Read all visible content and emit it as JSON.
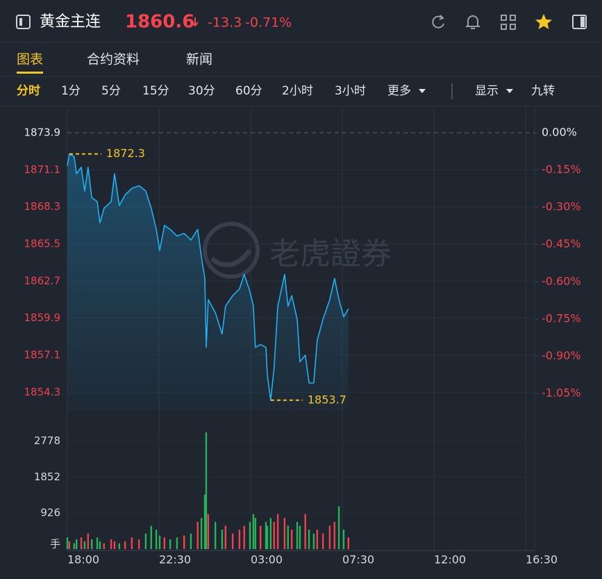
{
  "header": {
    "title": "黄金主连",
    "price": 1860.6,
    "change": -13.3,
    "change_pct": "-0.71%"
  },
  "tabs": [
    "图表",
    "合约资料",
    "新闻"
  ],
  "active_tab": 0,
  "periods": [
    "分时",
    "1分",
    "5分",
    "15分",
    "30分",
    "60分",
    "2小时",
    "3小时"
  ],
  "active_period": 0,
  "more": "更多",
  "display": "显示",
  "nine_turn": "九转",
  "watermark": "老虎證券",
  "chart_data": [
    {
      "type": "line",
      "x": [
        "18:00",
        "18:06",
        "18:20",
        "18:27",
        "18:41",
        "18:51",
        "19:01",
        "19:12",
        "19:28",
        "19:36",
        "19:48",
        "20:09",
        "20:19",
        "20:33",
        "20:50",
        "21:10",
        "21:31",
        "21:51",
        "22:07",
        "22:22",
        "22:32",
        "22:46",
        "23:03",
        "23:23",
        "23:44",
        "00:04",
        "00:24",
        "00:35",
        "00:45",
        "00:49",
        "00:55",
        "01:16",
        "01:36",
        "01:46",
        "02:07",
        "02:27",
        "02:41",
        "02:58",
        "03:08",
        "03:14",
        "03:29",
        "03:45",
        "03:49",
        "03:59",
        "04:09",
        "04:20",
        "04:40",
        "04:50",
        "05:01",
        "05:17",
        "05:25",
        "05:41",
        "05:52",
        "06:06",
        "06:16",
        "06:33",
        "06:53",
        "07:07",
        "07:20",
        "07:34",
        "07:48"
      ],
      "series": [
        {
          "color": "#22b1f0",
          "values": [
            1871.4,
            1872.3,
            1872.1,
            1870.8,
            1871.3,
            1869.5,
            1871.3,
            1869.0,
            1868.7,
            1867.1,
            1868.2,
            1868.7,
            1870.8,
            1868.4,
            1869.2,
            1869.7,
            1869.9,
            1869.5,
            1868.2,
            1866.6,
            1865.0,
            1866.9,
            1866.6,
            1866.1,
            1866.3,
            1865.8,
            1866.6,
            1864.5,
            1862.9,
            1857.7,
            1861.3,
            1860.3,
            1858.7,
            1860.8,
            1861.6,
            1862.1,
            1863.2,
            1861.9,
            1860.8,
            1857.7,
            1857.9,
            1857.7,
            1855.6,
            1853.7,
            1856.1,
            1860.8,
            1863.2,
            1860.8,
            1861.6,
            1859.8,
            1856.6,
            1857.1,
            1855.0,
            1855.0,
            1858.2,
            1859.8,
            1861.3,
            1862.9,
            1861.3,
            1860.0,
            1860.6
          ]
        }
      ],
      "xlim": [
        "18:00",
        "16:30"
      ],
      "xticks": [
        "18:00",
        "22:30",
        "03:00",
        "07:30",
        "12:00",
        "16:30"
      ],
      "ylim": [
        1852.9,
        1873.9
      ],
      "yticks": [
        1873.9,
        1871.1,
        1868.3,
        1865.5,
        1862.7,
        1859.9,
        1857.1,
        1854.3
      ],
      "y2lim": [
        -1.12,
        0
      ],
      "y2ticks": [
        {
          "value": 0,
          "label": "0.00%"
        },
        {
          "value": -0.15,
          "label": "-0.15%"
        },
        {
          "value": -0.3,
          "label": "-0.30%"
        },
        {
          "value": -0.45,
          "label": "-0.45%"
        },
        {
          "value": -0.6,
          "label": "-0.60%"
        },
        {
          "value": -0.75,
          "label": "-0.75%"
        },
        {
          "value": -0.9,
          "label": "-0.90%"
        },
        {
          "value": -1.05,
          "label": "-1.05%"
        }
      ],
      "reference_color": "#e6e8eb",
      "down_color": "#f0424c",
      "annotations": [
        {
          "x": "18:06",
          "value": 1872.3
        },
        {
          "x": "03:59",
          "value": 1853.7
        }
      ],
      "annotation_color": "#f5c623",
      "grid": true
    },
    {
      "type": "bar",
      "x": [
        "18:00",
        "18:06",
        "18:20",
        "18:27",
        "18:41",
        "18:51",
        "19:01",
        "19:12",
        "19:28",
        "19:36",
        "19:48",
        "20:09",
        "20:19",
        "20:33",
        "20:50",
        "21:10",
        "21:31",
        "21:51",
        "22:07",
        "22:22",
        "22:32",
        "22:46",
        "23:03",
        "23:23",
        "23:44",
        "00:04",
        "00:24",
        "00:35",
        "00:45",
        "00:49",
        "00:55",
        "01:16",
        "01:36",
        "01:46",
        "02:07",
        "02:27",
        "02:41",
        "02:58",
        "03:08",
        "03:14",
        "03:29",
        "03:45",
        "03:49",
        "03:59",
        "04:09",
        "04:20",
        "04:40",
        "04:50",
        "05:01",
        "05:17",
        "05:25",
        "05:41",
        "05:52",
        "06:06",
        "06:16",
        "06:33",
        "06:53",
        "07:07",
        "07:20",
        "07:34",
        "07:48"
      ],
      "values": [
        300,
        200,
        150,
        250,
        300,
        200,
        400,
        250,
        300,
        200,
        150,
        250,
        200,
        150,
        200,
        300,
        250,
        400,
        600,
        500,
        350,
        300,
        250,
        300,
        350,
        400,
        700,
        800,
        1400,
        3000,
        900,
        700,
        500,
        600,
        400,
        500,
        600,
        700,
        900,
        800,
        600,
        700,
        600,
        800,
        700,
        900,
        800,
        600,
        500,
        700,
        600,
        900,
        500,
        400,
        500,
        400,
        600,
        700,
        1100,
        500,
        300
      ],
      "colors": [
        "#27b35a",
        "#f0424c",
        "#27b35a",
        "#27b35a",
        "#f0424c",
        "#27b35a",
        "#f0424c",
        "#27b35a",
        "#27b35a",
        "#27b35a",
        "#f0424c",
        "#f0424c",
        "#f0424c",
        "#27b35a",
        "#f0424c",
        "#f0424c",
        "#f0424c",
        "#27b35a",
        "#27b35a",
        "#27b35a",
        "#27b35a",
        "#f0424c",
        "#27b35a",
        "#27b35a",
        "#f0424c",
        "#27b35a",
        "#f0424c",
        "#27b35a",
        "#27b35a",
        "#27b35a",
        "#f0424c",
        "#27b35a",
        "#27b35a",
        "#f0424c",
        "#f0424c",
        "#f0424c",
        "#f0424c",
        "#27b35a",
        "#27b35a",
        "#27b35a",
        "#f0424c",
        "#27b35a",
        "#27b35a",
        "#27b35a",
        "#f0424c",
        "#f0424c",
        "#f0424c",
        "#27b35a",
        "#f0424c",
        "#27b35a",
        "#27b35a",
        "#f0424c",
        "#27b35a",
        "#27b35a",
        "#f0424c",
        "#f0424c",
        "#f0424c",
        "#f0424c",
        "#27b35a",
        "#27b35a",
        "#f0424c"
      ],
      "xlim": [
        "18:00",
        "16:30"
      ],
      "ylim": [
        0,
        3000
      ],
      "yticks": [
        926,
        1852,
        2778
      ],
      "unit": "手"
    }
  ]
}
